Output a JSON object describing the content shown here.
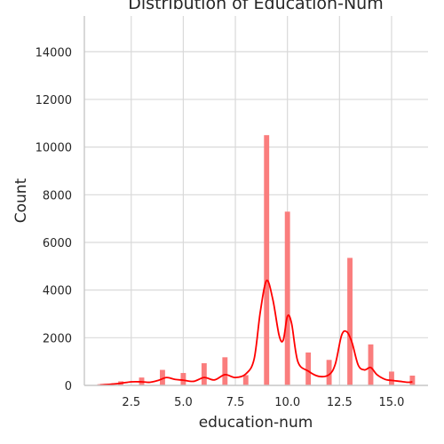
{
  "chart_data": {
    "type": "bar",
    "title": "Distribution of Education-Num",
    "xlabel": "education-num",
    "ylabel": "Count",
    "xlim": [
      0.25,
      16.75
    ],
    "ylim": [
      0,
      15500
    ],
    "xticks": [
      2.5,
      5.0,
      7.5,
      10.0,
      12.5,
      15.0
    ],
    "xtick_labels": [
      "2.5",
      "5.0",
      "7.5",
      "10.0",
      "12.5",
      "15.0"
    ],
    "yticks": [
      0,
      2000,
      4000,
      6000,
      8000,
      10000,
      12000,
      14000
    ],
    "ytick_labels": [
      "0",
      "2000",
      "4000",
      "6000",
      "8000",
      "10000",
      "12000",
      "14000"
    ],
    "bin_width": 0.25,
    "bars": [
      {
        "x": 1,
        "value": 50
      },
      {
        "x": 2,
        "value": 170
      },
      {
        "x": 3,
        "value": 330
      },
      {
        "x": 4,
        "value": 650
      },
      {
        "x": 5,
        "value": 520
      },
      {
        "x": 6,
        "value": 930
      },
      {
        "x": 7,
        "value": 1180
      },
      {
        "x": 8,
        "value": 430
      },
      {
        "x": 9,
        "value": 10500
      },
      {
        "x": 10,
        "value": 7290
      },
      {
        "x": 11,
        "value": 1380
      },
      {
        "x": 12,
        "value": 1070
      },
      {
        "x": 13,
        "value": 5350
      },
      {
        "x": 14,
        "value": 1720
      },
      {
        "x": 15,
        "value": 580
      },
      {
        "x": 16,
        "value": 410
      }
    ],
    "kde_curve": [
      [
        1.0,
        20
      ],
      [
        1.5,
        45
      ],
      [
        2.0,
        90
      ],
      [
        2.5,
        150
      ],
      [
        3.0,
        150
      ],
      [
        3.4,
        130
      ],
      [
        3.8,
        210
      ],
      [
        4.2,
        330
      ],
      [
        4.6,
        250
      ],
      [
        5.0,
        220
      ],
      [
        5.5,
        170
      ],
      [
        6.0,
        330
      ],
      [
        6.5,
        230
      ],
      [
        7.0,
        450
      ],
      [
        7.5,
        330
      ],
      [
        8.0,
        480
      ],
      [
        8.4,
        1100
      ],
      [
        8.7,
        3100
      ],
      [
        9.0,
        4400
      ],
      [
        9.3,
        3600
      ],
      [
        9.6,
        2100
      ],
      [
        9.8,
        1900
      ],
      [
        10.0,
        2900
      ],
      [
        10.2,
        2600
      ],
      [
        10.5,
        1000
      ],
      [
        11.0,
        600
      ],
      [
        11.5,
        380
      ],
      [
        12.0,
        450
      ],
      [
        12.3,
        900
      ],
      [
        12.6,
        2100
      ],
      [
        12.85,
        2250
      ],
      [
        13.1,
        1800
      ],
      [
        13.4,
        850
      ],
      [
        13.7,
        650
      ],
      [
        14.0,
        750
      ],
      [
        14.3,
        450
      ],
      [
        14.7,
        250
      ],
      [
        15.0,
        210
      ],
      [
        15.4,
        170
      ],
      [
        15.8,
        130
      ],
      [
        16.0,
        150
      ]
    ],
    "bar_color": "#fa7d7d",
    "kde_color": "#ff0000",
    "grid": true,
    "legend": "none"
  }
}
